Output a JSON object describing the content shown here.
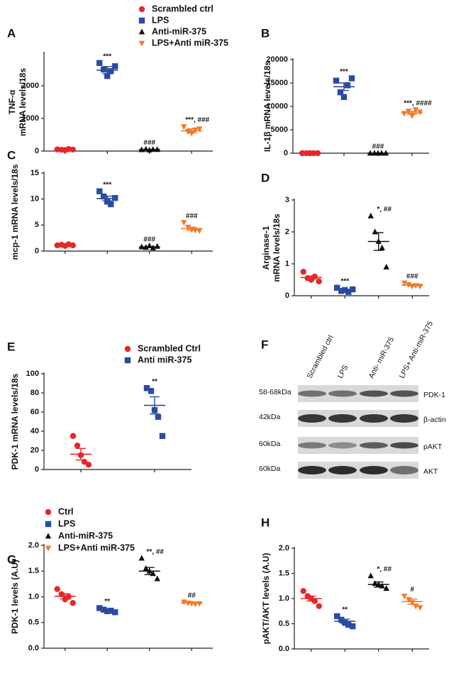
{
  "chart_data": [
    {
      "type": "dotplot",
      "label": "A",
      "ylabel": [
        "TNF-α",
        "mRNA levels/18s"
      ],
      "ylim": [
        0,
        3000
      ],
      "yticks": [
        0,
        1000,
        2000
      ],
      "series": [
        {
          "name": "Scrambled ctrl",
          "color": "#e8262a",
          "marker": "circle",
          "values": [
            50,
            40,
            30,
            60,
            45
          ],
          "mean": 45,
          "sem": 5
        },
        {
          "name": "LPS",
          "color": "#2c4aa0",
          "marker": "square",
          "values": [
            2700,
            2500,
            2300,
            2450,
            2600
          ],
          "mean": 2480,
          "sem": 110,
          "annotation": "***"
        },
        {
          "name": "Anti-miR-375",
          "color": "#111111",
          "marker": "triangle",
          "values": [
            40,
            60,
            30,
            50,
            45
          ],
          "mean": 45,
          "sem": 5,
          "annotation": "###"
        },
        {
          "name": "LPS+Anti miR-375",
          "color": "#f07a2a",
          "marker": "triangle-down",
          "values": [
            750,
            600,
            550,
            650,
            680
          ],
          "mean": 620,
          "sem": 60,
          "annotation": "***, ###"
        }
      ]
    },
    {
      "type": "dotplot",
      "label": "B",
      "ylabel": [
        "IL-1β mRNA levels/18s"
      ],
      "ylim": [
        0,
        20000
      ],
      "yticks": [
        0,
        5000,
        10000,
        15000,
        20000
      ],
      "series": [
        {
          "color": "#e8262a",
          "marker": "circle",
          "values": [
            0,
            0,
            0,
            0,
            0
          ],
          "mean": 0,
          "sem": 0
        },
        {
          "color": "#2c4aa0",
          "marker": "square",
          "values": [
            15500,
            13000,
            12000,
            14500,
            16000
          ],
          "mean": 14200,
          "sem": 800,
          "annotation": "***"
        },
        {
          "color": "#111111",
          "marker": "triangle",
          "values": [
            0,
            0,
            0,
            0,
            0
          ],
          "mean": 0,
          "sem": 0,
          "annotation": "###"
        },
        {
          "color": "#f07a2a",
          "marker": "triangle-down",
          "values": [
            8500,
            9000,
            8000,
            9300,
            8800
          ],
          "mean": 8600,
          "sem": 300,
          "annotation": "***, ####"
        }
      ]
    },
    {
      "type": "dotplot",
      "label": "C",
      "ylabel": [
        "mcp-1 mRNA levels/18s"
      ],
      "ylim": [
        0,
        15
      ],
      "yticks": [
        0,
        5,
        10,
        15
      ],
      "series": [
        {
          "color": "#e8262a",
          "marker": "circle",
          "values": [
            1.1,
            1.2,
            1.0,
            1.3,
            1.1
          ],
          "mean": 1.14,
          "sem": 0.05
        },
        {
          "color": "#2c4aa0",
          "marker": "square",
          "values": [
            11.5,
            10.5,
            9.5,
            9.0,
            10.2
          ],
          "mean": 10.1,
          "sem": 0.45,
          "annotation": "***"
        },
        {
          "color": "#111111",
          "marker": "triangle",
          "values": [
            0.8,
            0.7,
            1.0,
            0.6,
            0.9
          ],
          "mean": 0.8,
          "sem": 0.07,
          "annotation": "###"
        },
        {
          "color": "#f07a2a",
          "marker": "triangle-down",
          "values": [
            5.5,
            4.6,
            4.1,
            4.0,
            3.9
          ],
          "mean": 4.3,
          "sem": 0.3,
          "annotation": "###"
        }
      ]
    },
    {
      "type": "dotplot",
      "label": "D",
      "ylabel": [
        "Arginase-1",
        "mRNA levels/18s"
      ],
      "ylim": [
        0,
        3
      ],
      "yticks": [
        0,
        1,
        2,
        3
      ],
      "series": [
        {
          "color": "#e8262a",
          "marker": "circle",
          "values": [
            0.75,
            0.55,
            0.5,
            0.6,
            0.45
          ],
          "mean": 0.57,
          "sem": 0.05
        },
        {
          "color": "#2c4aa0",
          "marker": "square",
          "values": [
            0.25,
            0.15,
            0.18,
            0.12,
            0.2
          ],
          "mean": 0.18,
          "sem": 0.02,
          "annotation": "***"
        },
        {
          "color": "#111111",
          "marker": "triangle",
          "values": [
            2.5,
            2.0,
            1.7,
            1.5,
            0.9
          ],
          "mean": 1.7,
          "sem": 0.28,
          "annotation": "*, ##"
        },
        {
          "color": "#f07a2a",
          "marker": "triangle-down",
          "values": [
            0.4,
            0.35,
            0.3,
            0.32,
            0.3
          ],
          "mean": 0.33,
          "sem": 0.02,
          "annotation": "###"
        }
      ]
    },
    {
      "type": "dotplot",
      "label": "E",
      "ylabel": [
        "PDK-1 mRNA levels/18s"
      ],
      "ylim": [
        0,
        100
      ],
      "yticks": [
        0,
        20,
        40,
        60,
        80,
        100
      ],
      "series": [
        {
          "name": "Scrambled Ctrl",
          "color": "#e8262a",
          "marker": "circle",
          "values": [
            35,
            25,
            15,
            8,
            5
          ],
          "mean": 16,
          "sem": 6
        },
        {
          "name": "Anti miR-375",
          "color": "#2c4aa0",
          "marker": "square",
          "values": [
            85,
            82,
            62,
            55,
            35
          ],
          "mean": 67,
          "sem": 9,
          "annotation": "**"
        }
      ]
    },
    {
      "type": "dotplot",
      "label": "G",
      "ylabel": [
        "PDK-1 levels (A.U)"
      ],
      "ylim": [
        0,
        2
      ],
      "yticks": [
        {
          "value": 0,
          "label": "0.0"
        },
        0.5,
        {
          "value": 1,
          "label": "1.0"
        },
        1.5,
        {
          "value": 2,
          "label": "2.0"
        }
      ],
      "series": [
        {
          "name": "Ctrl",
          "color": "#e8262a",
          "marker": "circle",
          "values": [
            1.15,
            1.05,
            0.95,
            1.0,
            0.88
          ],
          "mean": 1.01,
          "sem": 0.05
        },
        {
          "name": "LPS",
          "color": "#2c4aa0",
          "marker": "square",
          "values": [
            0.78,
            0.75,
            0.72,
            0.73,
            0.7
          ],
          "mean": 0.74,
          "sem": 0.015,
          "annotation": "**"
        },
        {
          "name": "Anti-miR-375",
          "color": "#111111",
          "marker": "triangle",
          "values": [
            1.75,
            1.55,
            1.5,
            1.45,
            1.35
          ],
          "mean": 1.5,
          "sem": 0.07,
          "annotation": "**, ##"
        },
        {
          "name": "LPS+Anti miR-375",
          "color": "#f07a2a",
          "marker": "triangle-down",
          "values": [
            0.9,
            0.88,
            0.87,
            0.86,
            0.87
          ],
          "mean": 0.88,
          "sem": 0.01,
          "annotation": "##"
        }
      ]
    },
    {
      "type": "dotplot",
      "label": "H",
      "ylabel": [
        "pAKT/AKT levels (A.U)"
      ],
      "ylim": [
        0,
        2
      ],
      "yticks": [
        {
          "value": 0,
          "label": "0.0"
        },
        0.5,
        {
          "value": 1,
          "label": "1.0"
        },
        1.5,
        {
          "value": 2,
          "label": "2.0"
        }
      ],
      "series": [
        {
          "color": "#e8262a",
          "marker": "circle",
          "values": [
            1.15,
            1.05,
            1.0,
            0.95,
            0.85
          ],
          "mean": 1.0,
          "sem": 0.05
        },
        {
          "color": "#2c4aa0",
          "marker": "square",
          "values": [
            0.65,
            0.58,
            0.52,
            0.48,
            0.45
          ],
          "mean": 0.55,
          "sem": 0.04,
          "annotation": "**"
        },
        {
          "color": "#111111",
          "marker": "triangle",
          "values": [
            1.45,
            1.3,
            1.28,
            1.25,
            1.2
          ],
          "mean": 1.28,
          "sem": 0.05,
          "annotation": "*, ##"
        },
        {
          "color": "#f07a2a",
          "marker": "triangle-down",
          "values": [
            1.05,
            0.98,
            0.92,
            0.85,
            0.82
          ],
          "mean": 0.94,
          "sem": 0.05,
          "annotation": "#"
        }
      ]
    }
  ],
  "blot": {
    "label": "F",
    "lanes": [
      "Scrambled ctrl",
      "LPS",
      "Anti- miR-375",
      "LPS+ Anti-miR-375"
    ],
    "rows": [
      {
        "kda": "58-68kDa",
        "protein": "PDK-1"
      },
      {
        "kda": "42kDa",
        "protein": "β-actin"
      },
      {
        "kda": "60kDa",
        "protein": "pAKT"
      },
      {
        "kda": "60kDa",
        "protein": "AKT"
      }
    ]
  }
}
